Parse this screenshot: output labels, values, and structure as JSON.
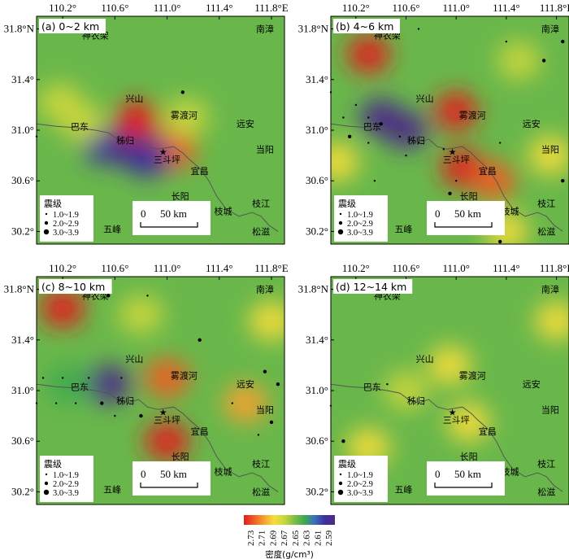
{
  "colors": {
    "high": "#e8322b",
    "low": "#3d2f9b",
    "background": "#69b74b"
  },
  "colorbar": {
    "ticks": [
      "2.73",
      "2.71",
      "2.69",
      "2.67",
      "2.65",
      "2.63",
      "2.61",
      "2.59"
    ],
    "stops": [
      "#e21d1d",
      "#ef5d25",
      "#f6a12e",
      "#f6dd3a",
      "#c9d63b",
      "#7cbf45",
      "#3fa94e",
      "#3a6ec0",
      "#3d2f9b",
      "#4d2b86"
    ],
    "label": "密度(g/cm³)"
  },
  "chart_data": [
    {
      "type": "heatmap",
      "title": "(a) 0~2 km",
      "xticks": [
        "110.2°",
        "110.6°",
        "111.0°",
        "111.4°",
        "111.8°E"
      ],
      "yticks": [
        "31.8°N",
        "31.4°",
        "31.0°",
        "30.6°",
        "30.2°"
      ],
      "xlim": [
        110.0,
        111.9
      ],
      "ylim": [
        30.1,
        31.9
      ],
      "anomalies": [
        {
          "lon": 110.52,
          "lat": 30.88,
          "rho": 2.6
        },
        {
          "lon": 110.75,
          "lat": 30.84,
          "rho": 2.59
        },
        {
          "lon": 110.77,
          "lat": 31.08,
          "rho": 2.73
        },
        {
          "lon": 111.05,
          "lat": 30.84,
          "rho": 2.72
        },
        {
          "lon": 110.18,
          "lat": 31.22,
          "rho": 2.67
        },
        {
          "lon": 110.35,
          "lat": 31.06,
          "rho": 2.67
        },
        {
          "lon": 111.15,
          "lat": 31.1,
          "rho": 2.67
        },
        {
          "lon": 110.85,
          "lat": 30.78,
          "rho": 2.61
        }
      ],
      "quakes": [
        [
          111.12,
          31.3,
          2
        ],
        [
          110.0,
          30.95,
          1
        ]
      ]
    },
    {
      "type": "heatmap",
      "title": "(b) 4~6 km",
      "xticks": [
        "110.2°",
        "110.6°",
        "111.0°",
        "111.4°",
        "111.8°E"
      ],
      "yticks": [
        "31.8°N",
        "31.4°",
        "31.0°",
        "30.6°",
        "30.2°"
      ],
      "xlim": [
        110.0,
        111.9
      ],
      "ylim": [
        30.1,
        31.9
      ],
      "anomalies": [
        {
          "lon": 110.4,
          "lat": 31.1,
          "rho": 2.59
        },
        {
          "lon": 110.6,
          "lat": 31.0,
          "rho": 2.59
        },
        {
          "lon": 110.3,
          "lat": 31.6,
          "rho": 2.73
        },
        {
          "lon": 111.0,
          "lat": 31.15,
          "rho": 2.73
        },
        {
          "lon": 111.05,
          "lat": 30.7,
          "rho": 2.73
        },
        {
          "lon": 111.3,
          "lat": 30.6,
          "rho": 2.72
        },
        {
          "lon": 111.75,
          "lat": 30.8,
          "rho": 2.69
        },
        {
          "lon": 110.05,
          "lat": 30.75,
          "rho": 2.69
        },
        {
          "lon": 111.5,
          "lat": 31.55,
          "rho": 2.67
        },
        {
          "lon": 111.4,
          "lat": 30.2,
          "rho": 2.69
        }
      ],
      "quakes": [
        [
          110.0,
          31.3,
          1
        ],
        [
          110.1,
          31.1,
          1
        ],
        [
          110.2,
          31.2,
          1
        ],
        [
          110.3,
          31.1,
          1
        ],
        [
          110.4,
          31.05,
          2
        ],
        [
          110.15,
          30.95,
          2
        ],
        [
          110.3,
          30.9,
          1
        ],
        [
          110.55,
          30.95,
          1
        ],
        [
          110.7,
          30.9,
          1
        ],
        [
          110.6,
          30.8,
          1
        ],
        [
          110.9,
          30.85,
          1
        ],
        [
          111.4,
          31.7,
          1
        ],
        [
          111.7,
          31.55,
          2
        ],
        [
          111.85,
          31.7,
          2
        ],
        [
          110.7,
          31.8,
          1
        ],
        [
          111.35,
          30.9,
          1
        ],
        [
          110.95,
          30.5,
          2
        ],
        [
          111.2,
          30.2,
          1
        ],
        [
          111.35,
          30.12,
          2
        ],
        [
          111.0,
          30.6,
          1
        ],
        [
          111.85,
          30.6,
          2
        ],
        [
          110.35,
          30.6,
          1
        ]
      ]
    },
    {
      "type": "heatmap",
      "title": "(c) 8~10 km",
      "xticks": [
        "110.2°",
        "110.6°",
        "111.0°",
        "111.4°",
        "111.8°E"
      ],
      "yticks": [
        "31.8°N",
        "31.4°",
        "31.0°",
        "30.6°",
        "30.2°"
      ],
      "xlim": [
        110.0,
        111.9
      ],
      "ylim": [
        30.1,
        31.9
      ],
      "anomalies": [
        {
          "lon": 110.55,
          "lat": 31.05,
          "rho": 2.59
        },
        {
          "lon": 110.25,
          "lat": 31.05,
          "rho": 2.63
        },
        {
          "lon": 110.2,
          "lat": 31.65,
          "rho": 2.73
        },
        {
          "lon": 111.0,
          "lat": 31.1,
          "rho": 2.72
        },
        {
          "lon": 111.0,
          "lat": 30.6,
          "rho": 2.73
        },
        {
          "lon": 111.6,
          "lat": 30.9,
          "rho": 2.7
        },
        {
          "lon": 111.8,
          "lat": 31.55,
          "rho": 2.68
        },
        {
          "lon": 110.8,
          "lat": 31.6,
          "rho": 2.67
        }
      ],
      "quakes": [
        [
          110.55,
          31.75,
          2
        ],
        [
          110.85,
          31.75,
          1
        ],
        [
          111.25,
          31.4,
          2
        ],
        [
          111.75,
          31.15,
          2
        ],
        [
          111.85,
          31.05,
          2
        ],
        [
          111.8,
          30.75,
          2
        ],
        [
          111.7,
          30.65,
          1
        ],
        [
          111.5,
          30.9,
          1
        ],
        [
          110.0,
          30.9,
          1
        ],
        [
          110.15,
          30.9,
          1
        ],
        [
          110.3,
          30.9,
          1
        ],
        [
          110.5,
          30.9,
          2
        ],
        [
          110.6,
          30.8,
          1
        ],
        [
          110.8,
          30.8,
          2
        ],
        [
          110.05,
          31.1,
          1
        ],
        [
          110.2,
          31.1,
          1
        ],
        [
          110.4,
          31.1,
          1
        ],
        [
          110.65,
          31.1,
          1
        ]
      ]
    },
    {
      "type": "heatmap",
      "title": "(d) 12~14 km",
      "xticks": [
        "110.2°",
        "110.6°",
        "111.0°",
        "111.4°",
        "111.8°E"
      ],
      "yticks": [
        "31.8°N",
        "31.4°",
        "31.0°",
        "30.6°",
        "30.2°"
      ],
      "xlim": [
        110.0,
        111.9
      ],
      "ylim": [
        30.1,
        31.9
      ],
      "anomalies": [
        {
          "lon": 110.95,
          "lat": 31.2,
          "rho": 2.69
        },
        {
          "lon": 111.1,
          "lat": 30.75,
          "rho": 2.69
        },
        {
          "lon": 111.8,
          "lat": 31.55,
          "rho": 2.68
        },
        {
          "lon": 110.3,
          "lat": 30.55,
          "rho": 2.68
        },
        {
          "lon": 110.6,
          "lat": 31.0,
          "rho": 2.67
        }
      ],
      "quakes": [
        [
          110.0,
          30.88,
          1
        ],
        [
          110.1,
          30.6,
          2
        ],
        [
          110.45,
          31.05,
          1
        ]
      ]
    }
  ],
  "places": [
    {
      "name": "神农架",
      "lon": 110.45,
      "lat": 31.75
    },
    {
      "name": "南漳",
      "lon": 111.75,
      "lat": 31.8
    },
    {
      "name": "兴山",
      "lon": 110.75,
      "lat": 31.25
    },
    {
      "name": "雾渡河",
      "lon": 111.13,
      "lat": 31.12
    },
    {
      "name": "远安",
      "lon": 111.6,
      "lat": 31.05
    },
    {
      "name": "巴东",
      "lon": 110.33,
      "lat": 31.03
    },
    {
      "name": "秭归",
      "lon": 110.68,
      "lat": 30.92
    },
    {
      "name": "当阳",
      "lon": 111.75,
      "lat": 30.85
    },
    {
      "name": "三斗坪",
      "lon": 111.0,
      "lat": 30.77
    },
    {
      "name": "宜昌",
      "lon": 111.25,
      "lat": 30.68
    },
    {
      "name": "长阳",
      "lon": 111.1,
      "lat": 30.48
    },
    {
      "name": "枝城",
      "lon": 111.43,
      "lat": 30.36
    },
    {
      "name": "枝江",
      "lon": 111.72,
      "lat": 30.42
    },
    {
      "name": "五峰",
      "lon": 110.58,
      "lat": 30.22
    },
    {
      "name": "松滋",
      "lon": 111.72,
      "lat": 30.2
    }
  ],
  "station": {
    "name": "三斗坪",
    "lon": 110.97,
    "lat": 30.83
  },
  "legend": {
    "title": "震级",
    "items": [
      "1.0~1.9",
      "2.0~2.9",
      "3.0~3.9"
    ]
  },
  "scalebar": {
    "start": "0",
    "end": "50 km"
  }
}
